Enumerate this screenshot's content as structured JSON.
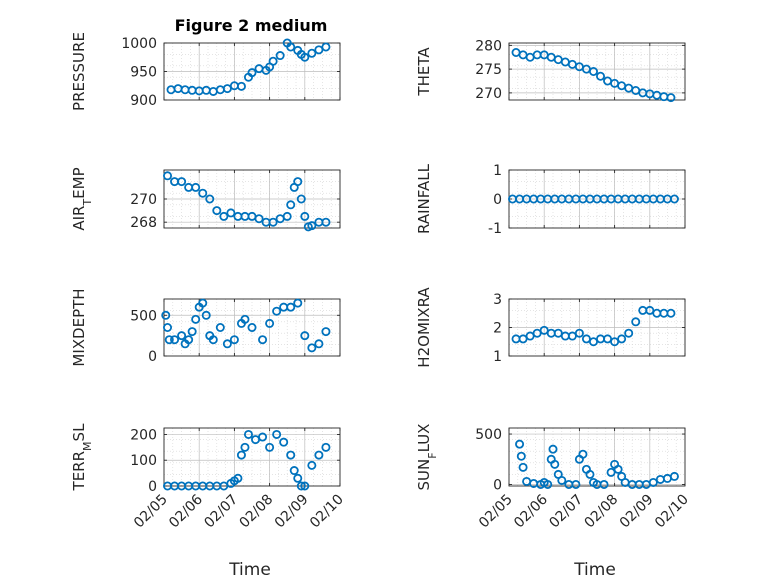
{
  "figure": {
    "title": "Figure 2 medium"
  },
  "chart_data": [
    {
      "id": "pressure",
      "type": "scatter",
      "ylabel": "PRESSURE",
      "ylim": [
        900,
        1000
      ],
      "yticks": [
        900,
        950,
        1000
      ],
      "xlim": [
        0,
        5
      ],
      "grid": true,
      "x": [
        0.2,
        0.4,
        0.6,
        0.8,
        1.0,
        1.2,
        1.4,
        1.6,
        1.8,
        2.0,
        2.2,
        2.4,
        2.5,
        2.7,
        2.9,
        3.0,
        3.1,
        3.3,
        3.5,
        3.6,
        3.8,
        3.9,
        4.0,
        4.2,
        4.4,
        4.6
      ],
      "y": [
        918,
        920,
        918,
        917,
        916,
        917,
        915,
        918,
        920,
        925,
        924,
        940,
        948,
        955,
        952,
        958,
        968,
        978,
        1000,
        993,
        987,
        980,
        975,
        982,
        988,
        993
      ]
    },
    {
      "id": "theta",
      "type": "scatter",
      "ylabel": "THETA",
      "ylim": [
        268.5,
        280.5
      ],
      "yticks": [
        270,
        275,
        280
      ],
      "xlim": [
        0,
        5
      ],
      "grid": true,
      "x": [
        0.2,
        0.4,
        0.6,
        0.8,
        1.0,
        1.2,
        1.4,
        1.6,
        1.8,
        2.0,
        2.2,
        2.4,
        2.6,
        2.8,
        3.0,
        3.2,
        3.4,
        3.6,
        3.8,
        4.0,
        4.2,
        4.4,
        4.6
      ],
      "y": [
        278.5,
        278,
        277.5,
        278,
        278,
        277.5,
        277,
        276.5,
        276,
        275.5,
        275,
        274.5,
        273.5,
        272.5,
        272,
        271.5,
        271,
        270.5,
        270,
        269.8,
        269.5,
        269.2,
        269
      ]
    },
    {
      "id": "air_temp",
      "type": "scatter",
      "ylabel": "AIR",
      "ylabel_sub": "T",
      "ylabel_suffix": "EMP",
      "ylim": [
        267.5,
        272.5
      ],
      "yticks": [
        268,
        270
      ],
      "xlim": [
        0,
        5
      ],
      "grid": true,
      "x": [
        0.1,
        0.3,
        0.5,
        0.7,
        0.9,
        1.1,
        1.3,
        1.5,
        1.7,
        1.9,
        2.1,
        2.3,
        2.5,
        2.7,
        2.9,
        3.1,
        3.3,
        3.5,
        3.6,
        3.7,
        3.8,
        3.9,
        4.0,
        4.1,
        4.2,
        4.4,
        4.6
      ],
      "y": [
        272,
        271.5,
        271.5,
        271,
        271,
        270.5,
        270,
        269,
        268.5,
        268.8,
        268.5,
        268.5,
        268.5,
        268.3,
        268,
        268,
        268.3,
        268.5,
        269.5,
        271,
        271.5,
        270,
        268.5,
        267.6,
        267.7,
        268,
        268
      ]
    },
    {
      "id": "rainfall",
      "type": "scatter",
      "ylabel": "RAINFALL",
      "ylim": [
        -1,
        1
      ],
      "yticks": [
        -1,
        0,
        1
      ],
      "xlim": [
        0,
        5
      ],
      "grid": true,
      "x": [
        0.1,
        0.3,
        0.5,
        0.7,
        0.9,
        1.1,
        1.3,
        1.5,
        1.7,
        1.9,
        2.1,
        2.3,
        2.5,
        2.7,
        2.9,
        3.1,
        3.3,
        3.5,
        3.7,
        3.9,
        4.1,
        4.3,
        4.5,
        4.7
      ],
      "y": [
        0,
        0,
        0,
        0,
        0,
        0,
        0,
        0,
        0,
        0,
        0,
        0,
        0,
        0,
        0,
        0,
        0,
        0,
        0,
        0,
        0,
        0,
        0,
        0
      ]
    },
    {
      "id": "mixdepth",
      "type": "scatter",
      "ylabel": "MIXDEPTH",
      "ylim": [
        0,
        700
      ],
      "yticks": [
        0,
        500
      ],
      "xlim": [
        0,
        5
      ],
      "grid": true,
      "x": [
        0.05,
        0.1,
        0.15,
        0.3,
        0.5,
        0.6,
        0.7,
        0.8,
        0.9,
        1.0,
        1.1,
        1.2,
        1.3,
        1.4,
        1.6,
        1.8,
        2.0,
        2.2,
        2.3,
        2.5,
        2.8,
        3.0,
        3.2,
        3.4,
        3.6,
        3.8,
        4.0,
        4.2,
        4.4,
        4.6
      ],
      "y": [
        500,
        350,
        200,
        200,
        250,
        150,
        200,
        300,
        450,
        600,
        650,
        500,
        250,
        200,
        350,
        150,
        200,
        400,
        450,
        350,
        200,
        400,
        550,
        600,
        600,
        650,
        250,
        100,
        150,
        300
      ]
    },
    {
      "id": "h2omixra",
      "type": "scatter",
      "ylabel": "H2OMIXRA",
      "ylim": [
        1,
        3
      ],
      "yticks": [
        1,
        2,
        3
      ],
      "xlim": [
        0,
        5
      ],
      "grid": true,
      "x": [
        0.2,
        0.4,
        0.6,
        0.8,
        1.0,
        1.2,
        1.4,
        1.6,
        1.8,
        2.0,
        2.2,
        2.4,
        2.6,
        2.8,
        3.0,
        3.2,
        3.4,
        3.6,
        3.8,
        4.0,
        4.2,
        4.4,
        4.6
      ],
      "y": [
        1.6,
        1.6,
        1.7,
        1.8,
        1.9,
        1.8,
        1.8,
        1.7,
        1.7,
        1.8,
        1.6,
        1.5,
        1.6,
        1.6,
        1.5,
        1.6,
        1.8,
        2.2,
        2.6,
        2.6,
        2.5,
        2.5,
        2.5
      ]
    },
    {
      "id": "terr_msl",
      "type": "scatter",
      "ylabel": "TERR",
      "ylabel_sub": "M",
      "ylabel_suffix": "SL",
      "ylim": [
        0,
        225
      ],
      "yticks": [
        0,
        100,
        200
      ],
      "xlim": [
        0,
        5
      ],
      "grid": true,
      "xticklabels": [
        "02/05",
        "02/06",
        "02/07",
        "02/08",
        "02/09",
        "02/10"
      ],
      "xlabel": "Time",
      "x": [
        0.1,
        0.3,
        0.5,
        0.7,
        0.9,
        1.1,
        1.3,
        1.5,
        1.7,
        1.9,
        2.0,
        2.1,
        2.2,
        2.3,
        2.4,
        2.6,
        2.8,
        3.0,
        3.2,
        3.4,
        3.6,
        3.7,
        3.8,
        3.9,
        4.0,
        4.2,
        4.4,
        4.6
      ],
      "y": [
        0,
        0,
        0,
        0,
        0,
        0,
        0,
        0,
        0,
        10,
        20,
        30,
        120,
        150,
        200,
        180,
        190,
        150,
        200,
        170,
        120,
        60,
        30,
        0,
        0,
        80,
        120,
        150
      ]
    },
    {
      "id": "sun_flux",
      "type": "scatter",
      "ylabel": "SUN",
      "ylabel_sub": "F",
      "ylabel_suffix": "LUX",
      "ylim": [
        -15,
        560
      ],
      "yticks": [
        0,
        500
      ],
      "xlim": [
        0,
        5
      ],
      "grid": true,
      "xticklabels": [
        "02/05",
        "02/06",
        "02/07",
        "02/08",
        "02/09",
        "02/10"
      ],
      "xlabel": "Time",
      "x": [
        0.3,
        0.35,
        0.4,
        0.5,
        0.7,
        0.9,
        1.0,
        1.1,
        1.2,
        1.25,
        1.3,
        1.4,
        1.5,
        1.7,
        1.9,
        2.0,
        2.1,
        2.2,
        2.3,
        2.4,
        2.5,
        2.7,
        2.9,
        3.0,
        3.1,
        3.2,
        3.3,
        3.5,
        3.7,
        3.9,
        4.1,
        4.3,
        4.5,
        4.7
      ],
      "y": [
        400,
        280,
        170,
        30,
        10,
        0,
        20,
        0,
        250,
        350,
        200,
        100,
        40,
        0,
        0,
        250,
        300,
        150,
        100,
        20,
        0,
        0,
        120,
        200,
        150,
        80,
        20,
        0,
        0,
        0,
        20,
        50,
        60,
        80
      ]
    }
  ]
}
